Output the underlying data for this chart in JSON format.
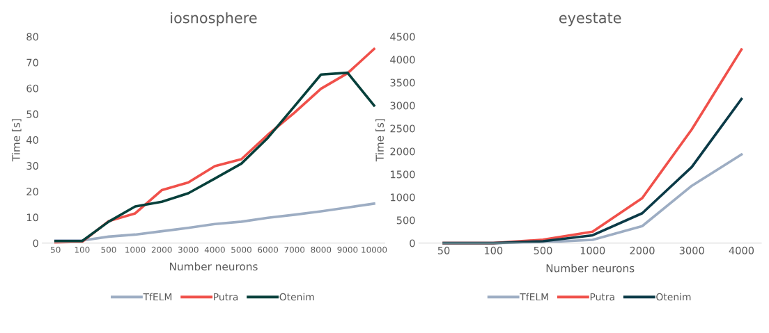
{
  "chart_data": [
    {
      "type": "line",
      "title": "iosnosphere",
      "xlabel": "Number neurons",
      "ylabel": "Time [s]",
      "categories": [
        "50",
        "100",
        "500",
        "1000",
        "2000",
        "3000",
        "4000",
        "5000",
        "6000",
        "7000",
        "8000",
        "9000",
        "10000"
      ],
      "ylim": [
        0,
        80
      ],
      "yticks": [
        0,
        10,
        20,
        30,
        40,
        50,
        60,
        70,
        80
      ],
      "grid": false,
      "legend": "bottom",
      "series": [
        {
          "name": "TfELM",
          "color": "#9dadc3",
          "values": [
            1,
            1,
            2.5,
            3.3,
            4.6,
            5.9,
            7.4,
            8.3,
            9.8,
            11,
            12.3,
            13.8,
            15.3
          ]
        },
        {
          "name": "Putra",
          "color": "#f0504a",
          "values": [
            0.2,
            0.5,
            8.5,
            11.5,
            20.5,
            23.5,
            29.8,
            32.5,
            42,
            50.5,
            59.8,
            65.8,
            75.2
          ]
        },
        {
          "name": "Otenim",
          "color": "#07403b",
          "values": [
            0.8,
            0.8,
            8.3,
            14.2,
            16,
            19.3,
            25,
            30.8,
            40.8,
            53,
            65.3,
            66,
            53.3
          ]
        }
      ]
    },
    {
      "type": "line",
      "title": "eyestate",
      "xlabel": "Number neurons",
      "ylabel": "Time [s]",
      "categories": [
        "50",
        "100",
        "500",
        "1000",
        "2000",
        "3000",
        "4000"
      ],
      "ylim": [
        0,
        4500
      ],
      "yticks": [
        0,
        500,
        1000,
        1500,
        2000,
        2500,
        3000,
        3500,
        4000,
        4500
      ],
      "grid": false,
      "legend": "bottom",
      "series": [
        {
          "name": "TfELM",
          "color": "#9dadc3",
          "values": [
            0,
            0,
            20,
            70,
            370,
            1250,
            1930
          ]
        },
        {
          "name": "Putra",
          "color": "#f0504a",
          "values": [
            0,
            0,
            75,
            250,
            980,
            2480,
            4220
          ]
        },
        {
          "name": "Otenim",
          "color": "#0b3a47",
          "values": [
            0,
            0,
            40,
            170,
            650,
            1660,
            3140
          ]
        }
      ]
    }
  ]
}
